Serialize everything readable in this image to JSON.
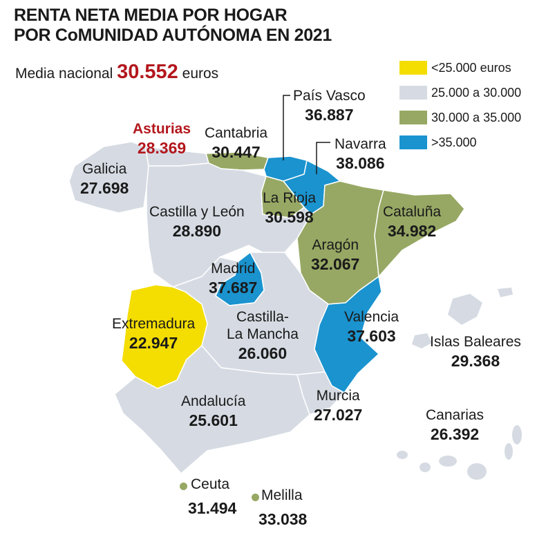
{
  "title": {
    "line1": "RENTA NETA MEDIA POR HOGAR",
    "line2": "POR CoMUNIDAD AUTÓNOMA EN 2021"
  },
  "national": {
    "label": "Media nacional",
    "value": "30.552",
    "unit": "euros"
  },
  "legend": [
    {
      "label": "<25.000 euros",
      "color": "#f4dd00"
    },
    {
      "label": "25.000 a 30.000",
      "color": "#d6dbe3"
    },
    {
      "label": "30.000 a 35.000",
      "color": "#97a864"
    },
    {
      "label": ">35.000",
      "color": "#1a93cf"
    }
  ],
  "regions": {
    "galicia": {
      "name": "Galicia",
      "value": "27.698"
    },
    "asturias": {
      "name": "Asturias",
      "value": "28.369"
    },
    "cantabria": {
      "name": "Cantabria",
      "value": "30.447"
    },
    "pais_vasco": {
      "name": "País Vasco",
      "value": "36.887"
    },
    "navarra": {
      "name": "Navarra",
      "value": "38.086"
    },
    "la_rioja": {
      "name": "La Rioja",
      "value": "30.598"
    },
    "cataluna": {
      "name": "Cataluña",
      "value": "34.982"
    },
    "aragon": {
      "name": "Aragón",
      "value": "32.067"
    },
    "castilla_leon": {
      "name": "Castilla y León",
      "value": "28.890"
    },
    "madrid": {
      "name": "Madrid",
      "value": "37.687"
    },
    "extremadura": {
      "name": "Extremadura",
      "value": "22.947"
    },
    "castilla_mancha": {
      "name_line1": "Castilla-",
      "name_line2": "La Mancha",
      "value": "26.060"
    },
    "valencia": {
      "name": "Valencia",
      "value": "37.603"
    },
    "islas_baleares": {
      "name": "Islas Baleares",
      "value": "29.368"
    },
    "andalucia": {
      "name": "Andalucía",
      "value": "25.601"
    },
    "murcia": {
      "name": "Murcia",
      "value": "27.027"
    },
    "canarias": {
      "name": "Canarias",
      "value": "26.392"
    },
    "ceuta": {
      "name": "Ceuta",
      "value": "31.494"
    },
    "melilla": {
      "name": "Melilla",
      "value": "33.038"
    }
  },
  "colors": {
    "highlight": "#b3171d",
    "border": "#ffffff"
  }
}
